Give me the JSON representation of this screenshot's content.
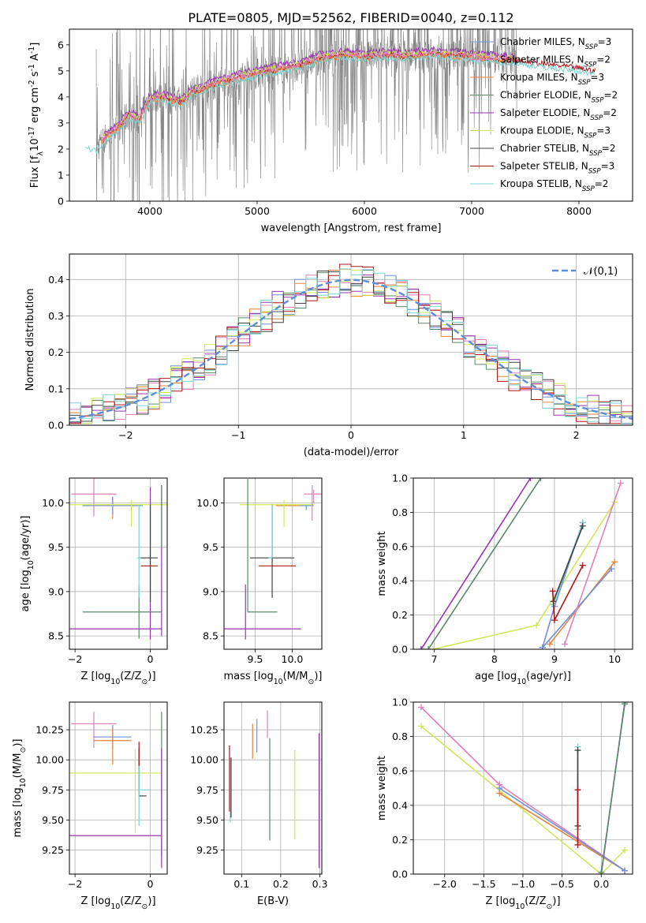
{
  "figure": {
    "title": "PLATE=0805, MJD=52562, FIBERID=0040, z=0.112"
  },
  "colors": {
    "chabrier_miles": "#6f8fdc",
    "salpeter_miles": "#e37fb8",
    "kroupa_miles": "#e8833a",
    "chabrier_elodie": "#5a8a6a",
    "salpeter_elodie": "#9a35b0",
    "kroupa_elodie": "#cfe85a",
    "chabrier_stelib": "#404040",
    "salpeter_stelib": "#b01515",
    "kroupa_stelib": "#7dd3d3",
    "data": "#808080",
    "normal": "#5b8ed6"
  },
  "chart_data": [
    {
      "id": "spectrum",
      "type": "line",
      "xlabel": "wavelength [Angstrom, rest frame]",
      "ylabel": "Flux [f$_\\lambda$10$^{-17}$ erg cm$^{-2}$ s$^{-1}$ A$^{-1}$]",
      "xlim": [
        3250,
        8500
      ],
      "ylim": [
        0,
        6.6
      ],
      "xticks": [
        4000,
        5000,
        6000,
        7000,
        8000
      ],
      "yticks": [
        0,
        1,
        2,
        3,
        4,
        5,
        6
      ],
      "legend_position": "top-right",
      "legend": [
        {
          "key": "chabrier_miles",
          "prefix": "Chabrier MILES, N",
          "sub": "SSP",
          "suffix": "=3"
        },
        {
          "key": "salpeter_miles",
          "prefix": "Salpeter MILES, N",
          "sub": "SSP",
          "suffix": "=2"
        },
        {
          "key": "kroupa_miles",
          "prefix": "Kroupa MILES, N",
          "sub": "SSP",
          "suffix": "=3"
        },
        {
          "key": "chabrier_elodie",
          "prefix": "Chabrier ELODIE, N",
          "sub": "SSP",
          "suffix": "=2"
        },
        {
          "key": "salpeter_elodie",
          "prefix": "Salpeter ELODIE, N",
          "sub": "SSP",
          "suffix": "=2"
        },
        {
          "key": "kroupa_elodie",
          "prefix": "Kroupa ELODIE, N",
          "sub": "SSP",
          "suffix": "=3"
        },
        {
          "key": "chabrier_stelib",
          "prefix": "Chabrier STELIB, N",
          "sub": "SSP",
          "suffix": "=2"
        },
        {
          "key": "salpeter_stelib",
          "prefix": "Salpeter STELIB, N",
          "sub": "SSP",
          "suffix": "=3"
        },
        {
          "key": "kroupa_stelib",
          "prefix": "Kroupa STELIB, N",
          "sub": "SSP",
          "suffix": "=2"
        }
      ],
      "model_continuum": {
        "x": [
          3400,
          3500,
          3600,
          3700,
          3800,
          3900,
          4000,
          4100,
          4200,
          4300,
          4400,
          4500,
          4600,
          4800,
          5000,
          5200,
          5400,
          5600,
          5800,
          6000,
          6200,
          6400,
          6600,
          6800,
          7000,
          7200,
          7400,
          7600,
          7800,
          8000,
          8150
        ],
        "y": [
          2.2,
          2.05,
          2.5,
          2.8,
          3.3,
          3.1,
          3.9,
          4.0,
          3.9,
          3.8,
          4.2,
          4.3,
          4.5,
          4.7,
          4.9,
          5.05,
          5.2,
          5.5,
          5.6,
          5.55,
          5.6,
          5.55,
          5.65,
          5.6,
          5.55,
          5.45,
          5.4,
          5.3,
          5.2,
          5.1,
          5.0
        ]
      }
    },
    {
      "id": "residuals",
      "type": "histogram",
      "xlabel": "(data-model)/error",
      "ylabel": "Normed distribution",
      "xlim": [
        -2.5,
        2.5
      ],
      "ylim": [
        0,
        0.47
      ],
      "xticks": [
        -2,
        -1,
        0,
        1,
        2
      ],
      "yticks": [
        0.0,
        0.1,
        0.2,
        0.3,
        0.4
      ],
      "grid": true,
      "legend_position": "top-right",
      "normal_label": "$\\mathcal{N}(0,1)$",
      "bin_width": 0.1,
      "bin_start": -2.5
    },
    {
      "id": "age_vs_z",
      "type": "errorbar",
      "xlabel": "Z [log$_{10}$(Z/Z$_\\odot$)]",
      "ylabel": "age  [log$_{10}$(age/yr)]",
      "xlim": [
        -2.15,
        0.45
      ],
      "ylim": [
        8.35,
        10.28
      ],
      "xticks": [
        -2,
        0
      ],
      "yticks": [
        8.5,
        9.0,
        9.5,
        10.0
      ],
      "grid": true,
      "points": [
        {
          "key": "salpeter_miles",
          "x": -1.5,
          "xerr": [
            0.6,
            0.6
          ],
          "y": 10.1,
          "yerr": [
            0.25,
            0.2
          ]
        },
        {
          "key": "kroupa_miles",
          "x": -1.0,
          "xerr": [
            0.8,
            0.8
          ],
          "y": 9.97,
          "yerr": [
            0.15,
            0.1
          ]
        },
        {
          "key": "chabrier_miles",
          "x": -1.0,
          "xerr": [
            0.8,
            0.8
          ],
          "y": 9.97,
          "yerr": [
            0.1,
            0.1
          ]
        },
        {
          "key": "kroupa_elodie",
          "x": -0.5,
          "xerr": [
            1.8,
            1.8
          ],
          "y": 9.98,
          "yerr": [
            0.25,
            0.05
          ]
        },
        {
          "key": "chabrier_elodie",
          "x": -0.3,
          "xerr": [
            1.5,
            0.6
          ],
          "y": 8.77,
          "yerr": [
            0.3,
            0.3
          ]
        },
        {
          "key": "salpeter_elodie",
          "x": 0.0,
          "xerr": [
            2.4,
            0.3
          ],
          "y": 8.58,
          "yerr": [
            0.12,
            1.6
          ]
        },
        {
          "key": "chabrier_stelib",
          "x": 0.0,
          "xerr": [
            0.3,
            0.2
          ],
          "y": 9.38,
          "yerr": [
            0.5,
            0.6
          ]
        },
        {
          "key": "salpeter_stelib",
          "x": 0.0,
          "xerr": [
            0.25,
            0.2
          ],
          "y": 9.29,
          "yerr": [
            0.0,
            0.0
          ]
        },
        {
          "key": "kroupa_stelib",
          "x": -0.3,
          "xerr": [
            0.05,
            0.05
          ],
          "y": 9.38,
          "yerr": [
            0.45,
            0.6
          ]
        },
        {
          "key": "salpeter_elodie",
          "x": 0.3,
          "xerr": [
            0.0,
            0.0
          ],
          "y": 9.8,
          "yerr": [
            1.3,
            0.4
          ]
        },
        {
          "key": "chabrier_elodie",
          "x": 0.3,
          "xerr": [
            0.0,
            0.0
          ],
          "y": 10.0,
          "yerr": [
            0.5,
            0.2
          ]
        }
      ]
    },
    {
      "id": "age_vs_mass",
      "type": "errorbar",
      "xlabel": "mass [log$_{10}$(M/M$_\\odot$)]",
      "ylabel": "",
      "xlim": [
        9.08,
        10.4
      ],
      "ylim": [
        8.35,
        10.28
      ],
      "xticks": [
        9.5,
        10.0
      ],
      "yticks": [
        8.5,
        9.0,
        9.5,
        10.0
      ],
      "grid": true,
      "points": [
        {
          "key": "salpeter_miles",
          "x": 10.29,
          "xerr": [
            0.13,
            0.15
          ],
          "y": 10.1,
          "yerr": [
            0.1,
            0.05
          ]
        },
        {
          "key": "kroupa_miles",
          "x": 10.18,
          "xerr": [
            0.4,
            0.0
          ],
          "y": 9.97,
          "yerr": [
            0.0,
            0.0
          ]
        },
        {
          "key": "chabrier_miles",
          "x": 10.19,
          "xerr": [
            0.1,
            0.1
          ],
          "y": 9.97,
          "yerr": [
            0.05,
            0.0
          ]
        },
        {
          "key": "kroupa_elodie",
          "x": 9.89,
          "xerr": [
            0.6,
            0.4
          ],
          "y": 9.98,
          "yerr": [
            0.25,
            0.05
          ]
        },
        {
          "key": "chabrier_elodie",
          "x": 9.4,
          "xerr": [
            0.0,
            0.4
          ],
          "y": 8.77,
          "yerr": [
            0.0,
            1.5
          ]
        },
        {
          "key": "salpeter_elodie",
          "x": 9.37,
          "xerr": [
            0.3,
            0.75
          ],
          "y": 8.58,
          "yerr": [
            0.12,
            0.5
          ]
        },
        {
          "key": "chabrier_stelib",
          "x": 9.73,
          "xerr": [
            0.3,
            0.3
          ],
          "y": 9.38,
          "yerr": [
            0.45,
            0.6
          ]
        },
        {
          "key": "salpeter_stelib",
          "x": 9.7,
          "xerr": [
            0.15,
            0.35
          ],
          "y": 9.29,
          "yerr": [
            0.0,
            0.0
          ]
        },
        {
          "key": "kroupa_stelib",
          "x": 9.73,
          "xerr": [
            0.05,
            0.0
          ],
          "y": 9.38,
          "yerr": [
            0.0,
            0.6
          ]
        },
        {
          "key": "salpeter_miles",
          "x": 10.27,
          "xerr": [
            0.0,
            0.0
          ],
          "y": 10.1,
          "yerr": [
            0.3,
            0.1
          ]
        }
      ]
    },
    {
      "id": "massweight_vs_age",
      "type": "line",
      "xlabel": "age  [log$_{10}$(age/yr)]",
      "ylabel": "mass weight",
      "xlim": [
        6.65,
        10.3
      ],
      "ylim": [
        0,
        1.0
      ],
      "xticks": [
        7,
        8,
        9,
        10
      ],
      "yticks": [
        0.0,
        0.2,
        0.4,
        0.6,
        0.8,
        1.0
      ],
      "grid": true,
      "series": [
        {
          "key": "salpeter_elodie",
          "x": [
            6.78,
            8.6
          ],
          "y": [
            0.0,
            1.0
          ]
        },
        {
          "key": "chabrier_elodie",
          "x": [
            6.9,
            8.77
          ],
          "y": [
            0.0,
            1.0
          ]
        },
        {
          "key": "kroupa_elodie",
          "x": [
            6.98,
            8.7,
            10.0
          ],
          "y": [
            0.0,
            0.14,
            0.86
          ]
        },
        {
          "key": "chabrier_miles",
          "x": [
            8.8,
            9.0,
            9.47
          ],
          "y": [
            0.01,
            0.25,
            0.74
          ]
        },
        {
          "key": "kroupa_stelib",
          "x": [
            8.98,
            9.47
          ],
          "y": [
            0.26,
            0.74
          ]
        },
        {
          "key": "chabrier_stelib",
          "x": [
            8.98,
            9.47
          ],
          "y": [
            0.28,
            0.72
          ]
        },
        {
          "key": "salpeter_stelib",
          "x": [
            8.97,
            9.0,
            9.47
          ],
          "y": [
            0.34,
            0.17,
            0.49
          ]
        },
        {
          "key": "kroupa_miles",
          "x": [
            8.92,
            10.0
          ],
          "y": [
            0.03,
            0.51
          ]
        },
        {
          "key": "chabrier_miles",
          "x": [
            8.8,
            9.95
          ],
          "y": [
            0.01,
            0.47
          ]
        },
        {
          "key": "salpeter_miles",
          "x": [
            9.17,
            10.1
          ],
          "y": [
            0.03,
            0.97
          ]
        }
      ]
    },
    {
      "id": "mass_vs_z",
      "type": "errorbar",
      "xlabel": "Z [log$_{10}$(Z/Z$_\\odot$)]",
      "ylabel": "mass [log$_{10}$(M/M$_\\odot$)]",
      "xlim": [
        -2.15,
        0.45
      ],
      "ylim": [
        9.05,
        10.48
      ],
      "xticks": [
        -2,
        0
      ],
      "yticks": [
        9.25,
        9.5,
        9.75,
        10.0,
        10.25
      ],
      "grid": true,
      "points": [
        {
          "key": "salpeter_miles",
          "x": -1.5,
          "xerr": [
            0.6,
            0.6
          ],
          "y": 10.3,
          "yerr": [
            0.2,
            0.1
          ]
        },
        {
          "key": "chabrier_miles",
          "x": -1.0,
          "xerr": [
            0.5,
            0.5
          ],
          "y": 10.19,
          "yerr": [
            0.1,
            0.1
          ]
        },
        {
          "key": "kroupa_miles",
          "x": -1.0,
          "xerr": [
            0.5,
            0.5
          ],
          "y": 10.16,
          "yerr": [
            0.2,
            0.1
          ]
        },
        {
          "key": "kroupa_elodie",
          "x": -0.4,
          "xerr": [
            1.9,
            0.7
          ],
          "y": 9.89,
          "yerr": [
            0.5,
            0.2
          ]
        },
        {
          "key": "salpeter_elodie",
          "x": 0.0,
          "xerr": [
            2.3,
            0.3
          ],
          "y": 9.37,
          "yerr": [
            0.0,
            0.0
          ]
        },
        {
          "key": "chabrier_stelib",
          "x": -0.3,
          "xerr": [
            0.0,
            0.2
          ],
          "y": 9.7,
          "yerr": [
            0.0,
            0.4
          ]
        },
        {
          "key": "kroupa_stelib",
          "x": -0.3,
          "xerr": [
            0.0,
            0.3
          ],
          "y": 9.75,
          "yerr": [
            0.3,
            0.2
          ]
        },
        {
          "key": "chabrier_elodie",
          "x": 0.3,
          "xerr": [
            0.0,
            0.0
          ],
          "y": 10.0,
          "yerr": [
            0.8,
            0.4
          ]
        },
        {
          "key": "salpeter_elodie",
          "x": 0.3,
          "xerr": [
            0.0,
            0.0
          ],
          "y": 9.5,
          "yerr": [
            0.4,
            0.6
          ]
        },
        {
          "key": "salpeter_stelib",
          "x": -0.3,
          "xerr": [
            0.0,
            0.0
          ],
          "y": 10.05,
          "yerr": [
            0.1,
            0.1
          ]
        }
      ]
    },
    {
      "id": "mass_vs_ebv",
      "type": "errorbar",
      "xlabel": "E(B-V)",
      "ylabel": "",
      "xlim": [
        0.055,
        0.305
      ],
      "ylim": [
        9.05,
        10.48
      ],
      "xticks": [
        0.1,
        0.2,
        0.3
      ],
      "yticks": [
        9.25,
        9.5,
        9.75,
        10.0,
        10.25
      ],
      "grid": true,
      "points": [
        {
          "key": "salpeter_stelib",
          "x": 0.069,
          "xerr": [
            0,
            0
          ],
          "y": 9.85,
          "yerr": [
            0.28,
            0.27
          ]
        },
        {
          "key": "kroupa_stelib",
          "x": 0.071,
          "xerr": [
            0,
            0
          ],
          "y": 9.75,
          "yerr": [
            0.27,
            0.25
          ]
        },
        {
          "key": "chabrier_stelib",
          "x": 0.073,
          "xerr": [
            0,
            0
          ],
          "y": 9.72,
          "yerr": [
            0.2,
            0.3
          ]
        },
        {
          "key": "kroupa_miles",
          "x": 0.128,
          "xerr": [
            0,
            0
          ],
          "y": 10.16,
          "yerr": [
            0.15,
            0.14
          ]
        },
        {
          "key": "chabrier_miles",
          "x": 0.139,
          "xerr": [
            0,
            0
          ],
          "y": 10.19,
          "yerr": [
            0.13,
            0.15
          ]
        },
        {
          "key": "salpeter_miles",
          "x": 0.166,
          "xerr": [
            0,
            0
          ],
          "y": 10.3,
          "yerr": [
            0.12,
            0.11
          ]
        },
        {
          "key": "chabrier_elodie",
          "x": 0.172,
          "xerr": [
            0,
            0
          ],
          "y": 9.75,
          "yerr": [
            0.42,
            0.43
          ]
        },
        {
          "key": "kroupa_elodie",
          "x": 0.236,
          "xerr": [
            0,
            0
          ],
          "y": 9.71,
          "yerr": [
            0.37,
            0.37
          ]
        },
        {
          "key": "salpeter_elodie",
          "x": 0.298,
          "xerr": [
            0,
            0
          ],
          "y": 9.66,
          "yerr": [
            0.56,
            0.56
          ]
        }
      ]
    },
    {
      "id": "massweight_vs_z",
      "type": "line",
      "xlabel": "Z [log$_{10}$(Z/Z$_\\odot$)]",
      "ylabel": "mass weight",
      "xlim": [
        -2.4,
        0.4
      ],
      "ylim": [
        0,
        1.0
      ],
      "xticks": [
        -2.0,
        -1.5,
        -1.0,
        -0.5,
        0.0
      ],
      "yticks": [
        0.0,
        0.2,
        0.4,
        0.6,
        0.8,
        1.0
      ],
      "grid": true,
      "series": [
        {
          "key": "salpeter_miles",
          "x": [
            -2.3,
            -1.3,
            0.3
          ],
          "y": [
            0.97,
            0.52,
            0.02
          ]
        },
        {
          "key": "kroupa_elodie",
          "x": [
            -2.3,
            0.0,
            0.3
          ],
          "y": [
            0.86,
            0.0,
            0.14
          ]
        },
        {
          "key": "kroupa_miles",
          "x": [
            -1.3,
            0.3
          ],
          "y": [
            0.47,
            0.02
          ]
        },
        {
          "key": "chabrier_miles",
          "x": [
            -1.3,
            0.3
          ],
          "y": [
            0.5,
            0.02
          ]
        },
        {
          "key": "salpeter_elodie",
          "x": [
            0.0,
            0.3
          ],
          "y": [
            0.0,
            1.0
          ]
        },
        {
          "key": "chabrier_elodie",
          "x": [
            0.0,
            0.3
          ],
          "y": [
            0.01,
            0.99
          ]
        },
        {
          "key": "kroupa_stelib",
          "x": [
            -0.3,
            -0.3
          ],
          "y": [
            0.26,
            0.74
          ]
        },
        {
          "key": "chabrier_stelib",
          "x": [
            -0.3,
            -0.3
          ],
          "y": [
            0.28,
            0.72
          ]
        },
        {
          "key": "salpeter_stelib",
          "x": [
            -0.3,
            -0.3
          ],
          "y": [
            0.17,
            0.49
          ]
        }
      ]
    }
  ]
}
